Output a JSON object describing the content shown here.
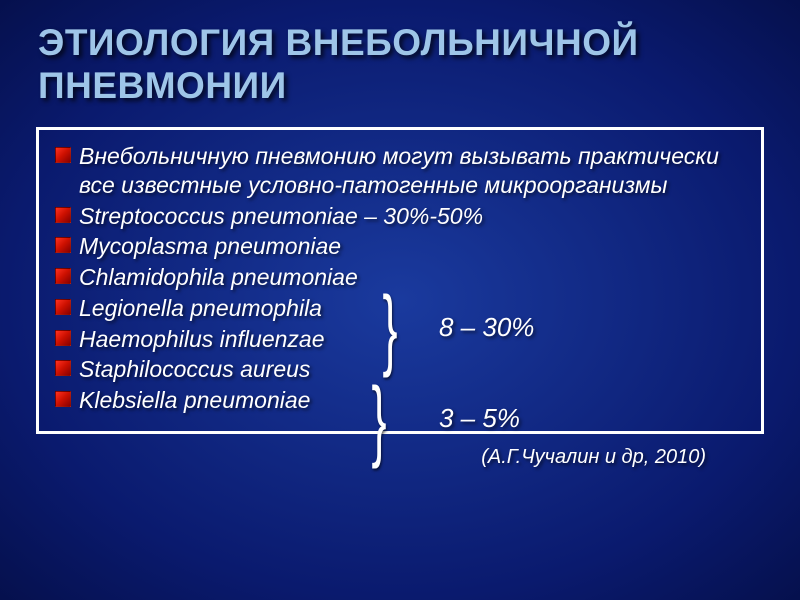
{
  "title": "ЭТИОЛОГИЯ ВНЕБОЛЬНИЧНОЙ ПНЕВМОНИИ",
  "bullets": [
    "Внебольничную пневмонию могут вызывать практически все известные условно-патогенные микроорганизмы",
    "Streptococcus pneumoniae – 30%-50%",
    "Mycoplasma pneumoniae",
    "Chlamidophila pneumoniae",
    "Legionella pneumophila",
    "Haemophilus influenzae",
    "Staphilococcus aureus",
    "Klebsiella pneumoniae"
  ],
  "group1_percent": "8 – 30%",
  "group2_percent": "3 – 5%",
  "citation": "(А.Г.Чучалин и др, 2010)",
  "colors": {
    "background_center": "#1a3a9e",
    "background_edge": "#05104d",
    "title_color": "#9ec5e8",
    "text_color": "#ffffff",
    "bullet_color": "#ff3020",
    "border_color": "#ffffff"
  },
  "typography": {
    "title_fontsize": 37,
    "bullet_fontsize": 23,
    "percent_fontsize": 26,
    "citation_fontsize": 20,
    "font_family": "Arial",
    "bullet_style": "italic"
  },
  "layout": {
    "brace1_group": [
      2,
      3,
      4
    ],
    "brace2_group": [
      5,
      6,
      7
    ]
  }
}
